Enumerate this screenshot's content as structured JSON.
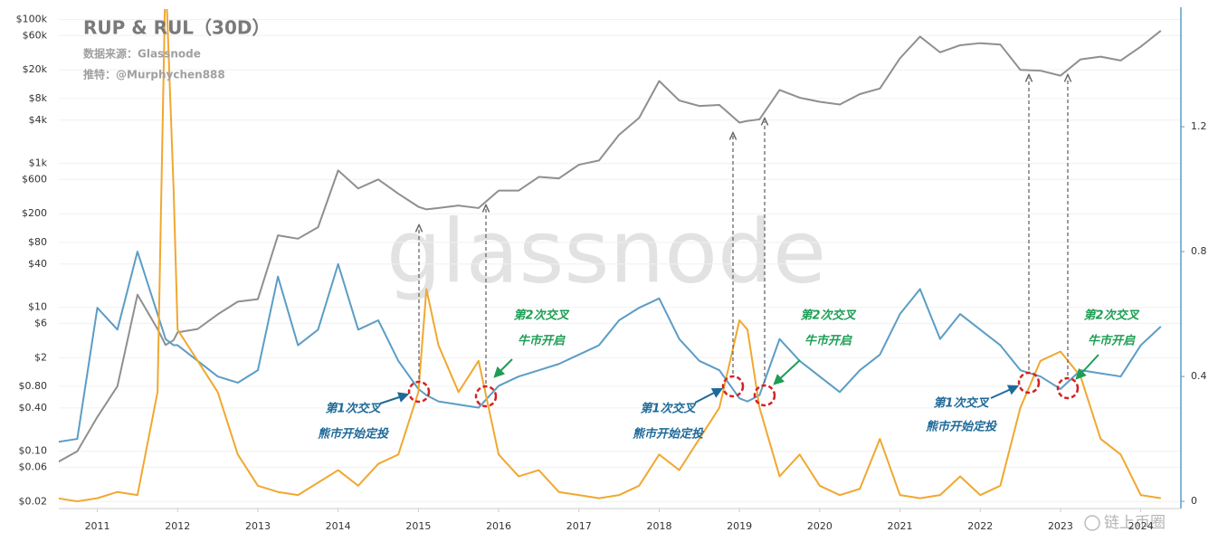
{
  "chart_data": {
    "type": "line",
    "title": "RUP & RUL（30D）",
    "source": "数据来源：Glassnode",
    "author": "推特：@Murphychen888",
    "watermark": "glassnode",
    "footer_watermark": "链上币圈",
    "x": [
      2010.5,
      2010.75,
      2011,
      2011.25,
      2011.5,
      2011.75,
      2011.85,
      2011.95,
      2012,
      2012.25,
      2012.5,
      2012.75,
      2013,
      2013.25,
      2013.5,
      2013.75,
      2014,
      2014.25,
      2014.5,
      2014.75,
      2015,
      2015.1,
      2015.25,
      2015.5,
      2015.75,
      2016,
      2016.25,
      2016.5,
      2016.75,
      2017,
      2017.25,
      2017.5,
      2017.75,
      2018,
      2018.25,
      2018.5,
      2018.75,
      2019,
      2019.1,
      2019.25,
      2019.5,
      2019.75,
      2020,
      2020.25,
      2020.5,
      2020.75,
      2021,
      2021.25,
      2021.5,
      2021.75,
      2022,
      2022.25,
      2022.5,
      2022.75,
      2023,
      2023.25,
      2023.5,
      2023.75,
      2024,
      2024.25
    ],
    "xlim": [
      2010.52,
      2024.5
    ],
    "xticks": [
      2011,
      2012,
      2013,
      2014,
      2015,
      2016,
      2017,
      2018,
      2019,
      2020,
      2021,
      2022,
      2023,
      2024
    ],
    "ylog": true,
    "ylim": [
      0.016,
      140000
    ],
    "yticks": [
      {
        "value": 0.02,
        "label": "$0.02"
      },
      {
        "value": 0.06,
        "label": "$0.06"
      },
      {
        "value": 0.1,
        "label": "$0.10"
      },
      {
        "value": 0.4,
        "label": "$0.40"
      },
      {
        "value": 0.8,
        "label": "$0.80"
      },
      {
        "value": 2,
        "label": "$2"
      },
      {
        "value": 6,
        "label": "$6"
      },
      {
        "value": 10,
        "label": "$10"
      },
      {
        "value": 40,
        "label": "$40"
      },
      {
        "value": 80,
        "label": "$80"
      },
      {
        "value": 200,
        "label": "$200"
      },
      {
        "value": 600,
        "label": "$600"
      },
      {
        "value": 1000,
        "label": "$1k"
      },
      {
        "value": 4000,
        "label": "$4k"
      },
      {
        "value": 8000,
        "label": "$8k"
      },
      {
        "value": 20000,
        "label": "$20k"
      },
      {
        "value": 60000,
        "label": "$60k"
      },
      {
        "value": 100000,
        "label": "$100k"
      }
    ],
    "y2lim": [
      -0.023,
      1.577
    ],
    "y2ticks": [
      0,
      0.4,
      0.8,
      1.2
    ],
    "grid": true,
    "series": [
      {
        "color": "#8f8f8f",
        "axis": "y",
        "values": [
          0.07,
          0.1,
          0.3,
          0.8,
          15,
          5,
          3,
          3.5,
          4.5,
          5,
          8,
          12,
          13,
          100,
          90,
          130,
          800,
          450,
          600,
          380,
          250,
          230,
          240,
          260,
          240,
          420,
          420,
          650,
          620,
          960,
          1100,
          2500,
          4300,
          14000,
          7500,
          6300,
          6500,
          3700,
          3900,
          4100,
          10500,
          8200,
          7200,
          6600,
          9200,
          11000,
          29000,
          58000,
          35000,
          44000,
          47000,
          45000,
          20000,
          19500,
          16600,
          28000,
          30500,
          27000,
          42000,
          70000
        ]
      },
      {
        "color": "#5b9dc6",
        "axis": "y2",
        "values": [
          0.19,
          0.2,
          0.62,
          0.55,
          0.8,
          0.6,
          0.52,
          0.5,
          0.5,
          0.45,
          0.4,
          0.38,
          0.42,
          0.72,
          0.5,
          0.55,
          0.76,
          0.55,
          0.58,
          0.45,
          0.36,
          0.34,
          0.32,
          0.31,
          0.3,
          0.37,
          0.4,
          0.42,
          0.44,
          0.47,
          0.5,
          0.58,
          0.62,
          0.65,
          0.52,
          0.45,
          0.42,
          0.33,
          0.32,
          0.34,
          0.52,
          0.45,
          0.4,
          0.35,
          0.42,
          0.47,
          0.6,
          0.68,
          0.52,
          0.6,
          0.55,
          0.5,
          0.42,
          0.4,
          0.36,
          0.42,
          0.41,
          0.4,
          0.5,
          0.56
        ]
      },
      {
        "color": "#f0a830",
        "axis": "y2",
        "values": [
          0.01,
          0.0,
          0.01,
          0.03,
          0.02,
          0.35,
          1.7,
          1.0,
          0.55,
          0.45,
          0.35,
          0.15,
          0.05,
          0.03,
          0.02,
          0.06,
          0.1,
          0.05,
          0.12,
          0.15,
          0.35,
          0.68,
          0.5,
          0.35,
          0.45,
          0.15,
          0.08,
          0.1,
          0.03,
          0.02,
          0.01,
          0.02,
          0.05,
          0.15,
          0.1,
          0.2,
          0.3,
          0.58,
          0.55,
          0.3,
          0.08,
          0.15,
          0.05,
          0.02,
          0.04,
          0.2,
          0.02,
          0.01,
          0.02,
          0.08,
          0.02,
          0.05,
          0.3,
          0.45,
          0.48,
          0.4,
          0.2,
          0.15,
          0.02,
          0.01
        ]
      }
    ],
    "annotations": [
      {
        "kind": "first",
        "lines": [
          "第1次交叉",
          "熊市开始定投"
        ]
      },
      {
        "kind": "second",
        "lines": [
          "第2次交叉",
          "牛市开启"
        ]
      },
      {
        "kind": "first",
        "lines": [
          "第1次交叉",
          "熊市开始定投"
        ]
      },
      {
        "kind": "second",
        "lines": [
          "第2次交叉",
          "牛市开启"
        ]
      },
      {
        "kind": "first",
        "lines": [
          "第1次交叉",
          "熊市开始定投"
        ]
      },
      {
        "kind": "second",
        "lines": [
          "第2次交叉",
          "牛市开启"
        ]
      }
    ]
  }
}
